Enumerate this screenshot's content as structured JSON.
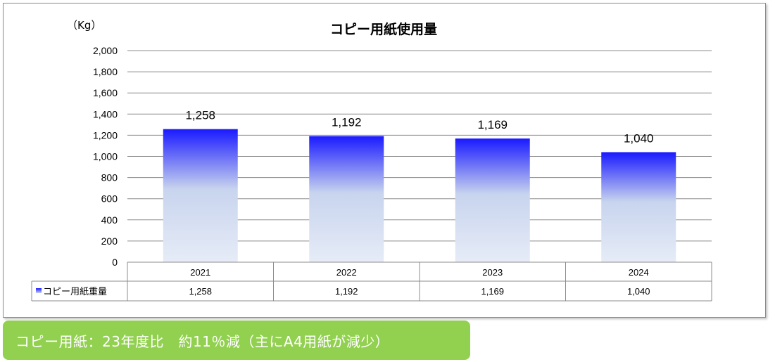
{
  "chart_data": {
    "type": "bar",
    "title": "コピー用紙使用量",
    "unit_label": "（Kg）",
    "categories": [
      "2021",
      "2022",
      "2023",
      "2024"
    ],
    "series": [
      {
        "name": "コピー用紙重量",
        "values": [
          1258,
          1192,
          1169,
          1040
        ]
      }
    ],
    "value_labels": [
      "1,258",
      "1,192",
      "1,169",
      "1,040"
    ],
    "y_ticks": [
      "0",
      "200",
      "400",
      "600",
      "800",
      "1,000",
      "1,200",
      "1,400",
      "1,600",
      "1,800",
      "2,000"
    ],
    "ylim": [
      0,
      2000
    ],
    "grid": true,
    "data_table": true,
    "colors": {
      "bar_top": "#1a1aff",
      "bar_mid": "#c8d4ee",
      "bar_bottom": "#e6ecf7",
      "grid": "#8c8c8c"
    }
  },
  "note": {
    "text": "コピー用紙：23年度比　約11％減（主にA4用紙が減少）",
    "color": "#92d050"
  }
}
